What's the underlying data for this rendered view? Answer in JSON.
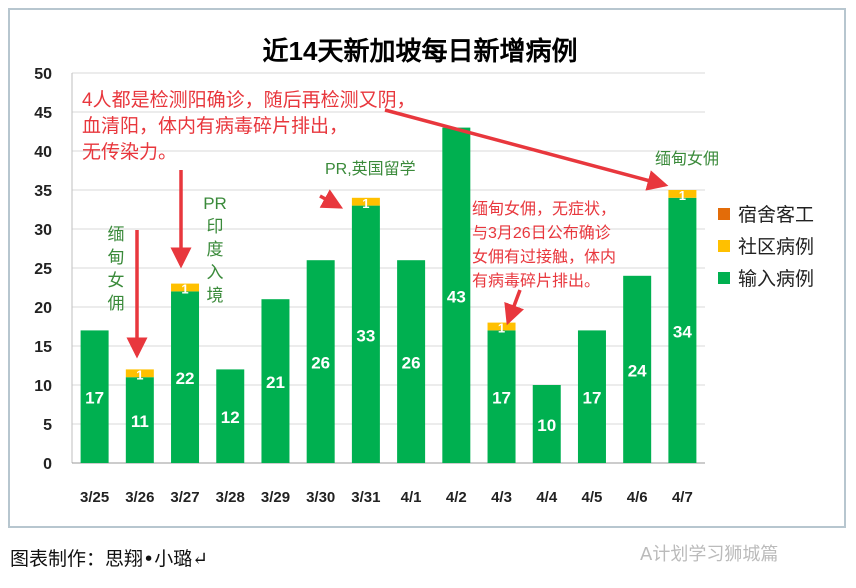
{
  "chart_data": {
    "type": "bar",
    "stacked": true,
    "title": "近14天新加坡每日新增病例",
    "categories": [
      "3/25",
      "3/26",
      "3/27",
      "3/28",
      "3/29",
      "3/30",
      "3/31",
      "4/1",
      "4/2",
      "4/3",
      "4/4",
      "4/5",
      "4/6",
      "4/7"
    ],
    "series": [
      {
        "name": "输入病例",
        "color": "#00b050",
        "values": [
          17,
          11,
          22,
          12,
          21,
          26,
          33,
          26,
          43,
          17,
          10,
          17,
          24,
          34
        ]
      },
      {
        "name": "社区病例",
        "color": "#ffc000",
        "values": [
          0,
          1,
          1,
          0,
          0,
          0,
          1,
          0,
          0,
          1,
          0,
          0,
          0,
          1
        ]
      },
      {
        "name": "宿舍客工",
        "color": "#e36c09",
        "values": [
          0,
          0,
          0,
          0,
          0,
          0,
          0,
          0,
          0,
          0,
          0,
          0,
          0,
          0
        ]
      }
    ],
    "ylim": [
      0,
      50
    ],
    "yticks": [
      0,
      5,
      10,
      15,
      20,
      25,
      30,
      35,
      40,
      45,
      50
    ],
    "grid": true,
    "legend": "right",
    "annotations": {
      "main_note": [
        "4人都是检测阳确诊，随后再检测又阴，",
        "血清阳，体内有病毒碎片排出，",
        "无传染力。"
      ],
      "note_326": "缅甸女佣",
      "note_327": "PR印度入境",
      "note_331": "PR,英国留学",
      "note_403": [
        "缅甸女佣，无症状，",
        "与3月26日公布确诊",
        "女佣有过接触，体内",
        "有病毒碎片排出。"
      ],
      "note_407": "缅甸女佣"
    }
  },
  "footer": {
    "caption": "图表制作：思翔•小璐↵",
    "watermark": "A计划学习狮城篇"
  }
}
